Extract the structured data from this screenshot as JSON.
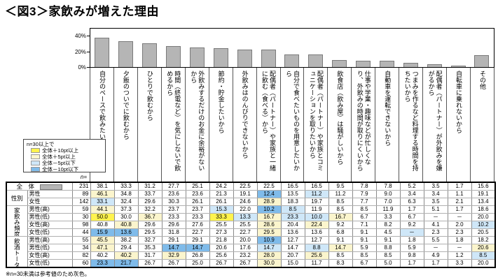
{
  "title": "＜図3＞家飲みが増えた理由",
  "footnote": "※n=30未満は参考値のため灰色。",
  "legend": {
    "title": "n=30以上で",
    "items": [
      {
        "label": "全体＋10pt以上",
        "key": "y10"
      },
      {
        "label": "全体＋5pt以上",
        "key": "y5"
      },
      {
        "label": "全体－5pt以下",
        "key": "b5"
      },
      {
        "label": "全体－10pt以下",
        "key": "b10"
      }
    ]
  },
  "colors": {
    "y10": "#fff34d",
    "y5": "#fbf5cd",
    "b5": "#cfe7f8",
    "b10": "#7fbbea",
    "bar": "#b5b5b5",
    "bar_border": "#7a7a7a"
  },
  "chart_data": {
    "type": "bar",
    "title": "＜図3＞家飲みが増えた理由",
    "categories": [
      "自分のペースで飲みたいから",
      "夕飯のついでに飲むから",
      "ひとりで飲むから",
      "時間（終電など）を気にしないで飲めるから",
      "外飲みするだけのお金に余裕がないから",
      "節約・貯金したいから",
      "外飲みはのんびりできないから",
      "配偶者（パートナー）や家族と一緒に飲む（食べる）から",
      "自分で食べたいものを用意したいから",
      "配偶者（パートナー）や家族とコミュニケーションを取りたいから",
      "飲食店（飲み屋）は騒がしいから",
      "仕事や学業・趣味などが忙しくなり、外飲みの時間が取りにくいから",
      "自動車を運転できないから",
      "つまみを作るなど料理する時間を持ちたいから",
      "配偶者（パートナー）が外飲みを嫌がるから",
      "自転車に乗れないから",
      "その他"
    ],
    "values": [
      38.1,
      33.3,
      31.2,
      27.7,
      25.1,
      24.2,
      22.5,
      22.5,
      16.5,
      16.5,
      9.5,
      7.8,
      7.8,
      5.2,
      3.5,
      1.7,
      15.6
    ],
    "unit": "%",
    "yticks": [
      "40%",
      "20%",
      "0%"
    ],
    "ylim": [
      0,
      50
    ],
    "grid": false,
    "legend_position": "none"
  },
  "table": {
    "n_header": "n=",
    "rows": [
      {
        "label": "全　体",
        "n": "231",
        "total": true,
        "values": [
          "38.1",
          "33.3",
          "31.2",
          "27.7",
          "25.1",
          "24.2",
          "22.5",
          "22.5",
          "16.5",
          "16.5",
          "9.5",
          "7.8",
          "7.8",
          "5.2",
          "3.5",
          "1.7",
          "15.6"
        ],
        "fills": [
          "",
          "",
          "",
          "",
          "",
          "",
          "",
          "",
          "",
          "",
          "",
          "",
          "",
          "",
          "",
          "",
          ""
        ]
      },
      {
        "group": {
          "label": "性別",
          "span": 2,
          "vertical": false
        },
        "label": "男性",
        "n": "89",
        "values": [
          "46.1",
          "34.8",
          "33.7",
          "23.6",
          "23.6",
          "21.3",
          "19.1",
          "12.4",
          "13.5",
          "11.2",
          "11.2",
          "7.9",
          "9.0",
          "3.4",
          "3.4",
          "1.1",
          "19.1"
        ],
        "fills": [
          "y5",
          "",
          "",
          "",
          "",
          "",
          "",
          "b10",
          "",
          "b5",
          "",
          "",
          "",
          "",
          "",
          "",
          ""
        ]
      },
      {
        "label": "女性",
        "n": "142",
        "values": [
          "33.1",
          "32.4",
          "29.6",
          "30.3",
          "26.1",
          "26.1",
          "24.6",
          "28.9",
          "18.3",
          "19.7",
          "8.5",
          "7.7",
          "7.0",
          "6.3",
          "3.5",
          "2.1",
          "13.4"
        ],
        "fills": [
          "b5",
          "",
          "",
          "",
          "",
          "",
          "",
          "y5",
          "",
          "",
          "",
          "",
          "",
          "",
          "",
          "",
          ""
        ]
      },
      {
        "group": {
          "label": "家飲み頻度",
          "span": 4,
          "vertical": true
        },
        "label": "男性(高)",
        "n": "59",
        "values": [
          "44.1",
          "37.3",
          "32.2",
          "23.7",
          "23.7",
          "15.3",
          "22.0",
          "10.2",
          "8.5",
          "11.9",
          "8.5",
          "8.5",
          "11.9",
          "1.7",
          "5.1",
          "1.7",
          "18.6"
        ],
        "fills": [
          "y5",
          "",
          "",
          "",
          "",
          "b5",
          "",
          "b10",
          "b5",
          "",
          "",
          "",
          "",
          "",
          "",
          "",
          ""
        ]
      },
      {
        "label": "男性(低)",
        "n": "30",
        "values": [
          "50.0",
          "30.0",
          "36.7",
          "23.3",
          "23.3",
          "33.3",
          "13.3",
          "16.7",
          "23.3",
          "10.0",
          "16.7",
          "6.7",
          "3.3",
          "6.7",
          "－",
          "－",
          "20.0"
        ],
        "fills": [
          "y10",
          "",
          "y5",
          "",
          "",
          "y10",
          "b5",
          "y5",
          "b5",
          "b5",
          "y5",
          "",
          "",
          "",
          "",
          "",
          ""
        ]
      },
      {
        "label": "女性(高)",
        "n": "98",
        "values": [
          "40.8",
          "40.8",
          "29.6",
          "29.6",
          "27.6",
          "25.5",
          "25.5",
          "28.6",
          "20.4",
          "22.4",
          "9.2",
          "7.1",
          "8.2",
          "9.2",
          "4.1",
          "2.0",
          "10.2"
        ],
        "fills": [
          "",
          "y5",
          "",
          "",
          "",
          "",
          "",
          "y5",
          "",
          "y5",
          "",
          "",
          "",
          "",
          "",
          "",
          "b5"
        ]
      },
      {
        "label": "女性(低)",
        "n": "44",
        "values": [
          "15.9",
          "13.6",
          "29.5",
          "31.8",
          "22.7",
          "27.3",
          "22.7",
          "29.5",
          "13.6",
          "13.6",
          "6.8",
          "9.1",
          "4.5",
          "－",
          "2.3",
          "2.3",
          "20.5"
        ],
        "fills": [
          "b10",
          "b10",
          "",
          "",
          "",
          "",
          "",
          "y5",
          "",
          "",
          "",
          "",
          "",
          "b5",
          "",
          "",
          ""
        ]
      },
      {
        "group": {
          "label": "飲酒トータル頻度",
          "span": 4,
          "vertical": true
        },
        "label": "男性(高)",
        "n": "55",
        "values": [
          "45.5",
          "38.2",
          "32.7",
          "29.1",
          "29.1",
          "21.8",
          "20.0",
          "10.9",
          "12.7",
          "12.7",
          "9.1",
          "9.1",
          "9.1",
          "1.8",
          "5.5",
          "1.8",
          "18.2"
        ],
        "fills": [
          "y5",
          "",
          "",
          "",
          "",
          "",
          "",
          "b10",
          "",
          "",
          "",
          "",
          "",
          "",
          "",
          "",
          ""
        ]
      },
      {
        "label": "男性(低)",
        "n": "34",
        "values": [
          "47.1",
          "29.4",
          "35.3",
          "14.7",
          "14.7",
          "20.6",
          "17.6",
          "14.7",
          "14.7",
          "8.8",
          "14.7",
          "5.9",
          "8.8",
          "5.9",
          "－",
          "－",
          "20.6"
        ],
        "fills": [
          "y5",
          "",
          "",
          "b10",
          "b10",
          "",
          "",
          "b5",
          "",
          "b5",
          "y5",
          "",
          "",
          "",
          "",
          "",
          "y5"
        ]
      },
      {
        "label": "女性(高)",
        "n": "82",
        "values": [
          "40.2",
          "40.2",
          "31.7",
          "32.9",
          "26.8",
          "25.6",
          "23.2",
          "28.0",
          "20.7",
          "25.6",
          "8.5",
          "8.5",
          "8.5",
          "9.8",
          "4.9",
          "1.2",
          "8.5"
        ],
        "fills": [
          "",
          "y5",
          "",
          "y5",
          "",
          "",
          "",
          "y5",
          "",
          "y5",
          "",
          "",
          "",
          "",
          "",
          "",
          "b5"
        ]
      },
      {
        "label": "女性(低)",
        "n": "60",
        "values": [
          "23.3",
          "21.7",
          "26.7",
          "26.7",
          "25.0",
          "26.7",
          "26.7",
          "30.0",
          "15.0",
          "11.7",
          "8.3",
          "6.7",
          "5.0",
          "1.7",
          "1.7",
          "3.3",
          "20.0"
        ],
        "fills": [
          "b10",
          "b10",
          "",
          "",
          "",
          "",
          "",
          "y5",
          "",
          "",
          "",
          "",
          "",
          "",
          "",
          "",
          ""
        ]
      }
    ]
  }
}
